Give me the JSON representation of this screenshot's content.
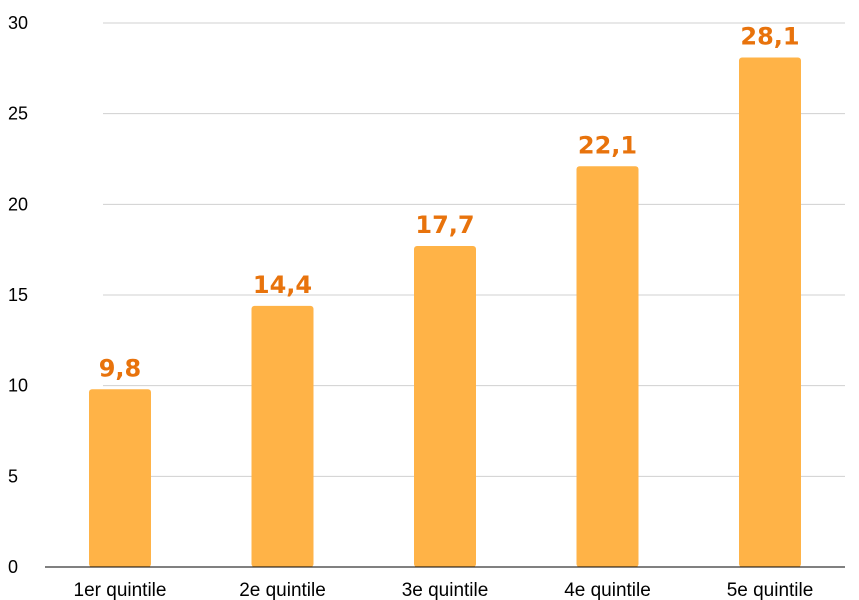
{
  "chart_data": {
    "type": "bar",
    "title": "",
    "xlabel": "",
    "ylabel": "",
    "categories": [
      "1er quintile",
      "2e quintile",
      "3e quintile",
      "4e quintile",
      "5e quintile"
    ],
    "values": [
      9.8,
      14.4,
      17.7,
      22.1,
      28.1
    ],
    "value_labels": [
      "9,8",
      "14,4",
      "17,7",
      "22,1",
      "28,1"
    ],
    "yticks": [
      "0",
      "5",
      "10",
      "15",
      "20",
      "25",
      "30"
    ],
    "ylim": [
      0,
      30
    ],
    "grid": true,
    "legend": "none",
    "colors": {
      "bar": "#FFB347",
      "label": "#E8730C",
      "grid": "#D0D0D0"
    }
  }
}
